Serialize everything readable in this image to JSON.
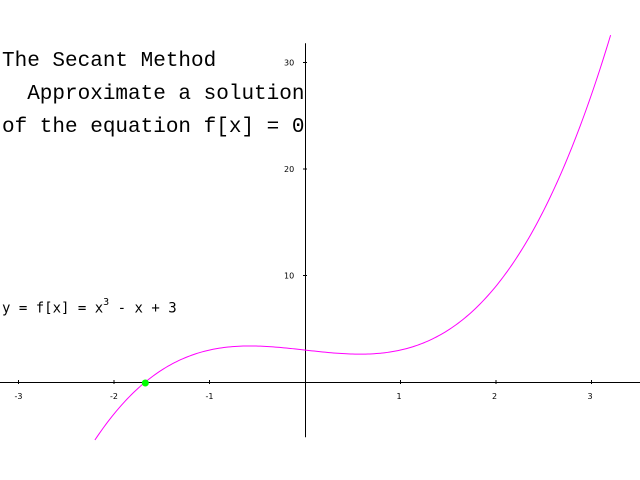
{
  "title_lines": [
    "The Secant Method",
    "  Approximate a solution",
    "of the equation f[x] = 0"
  ],
  "equation": {
    "prefix": "y = f[x] = x",
    "exponent": "3",
    "suffix": " - x + 3"
  },
  "chart_data": {
    "type": "line",
    "function": "x^3 - x + 3",
    "xlim": [
      -3.2,
      3.5
    ],
    "ylim": [
      -5,
      32
    ],
    "x_ticks": [
      -3,
      -2,
      -1,
      1,
      2,
      3
    ],
    "y_ticks": [
      10,
      20,
      30
    ],
    "x_tick_labels": [
      "-3",
      "-2",
      "-1",
      "1",
      "2",
      "3"
    ],
    "y_tick_labels": [
      "10",
      "20",
      "30"
    ],
    "curve_domain": [
      -2.2,
      3.2
    ],
    "curve_color": "#ff00ff",
    "root_point": {
      "x": -1.672,
      "y": 0
    },
    "root_color": "#00ff00",
    "grid": false
  }
}
